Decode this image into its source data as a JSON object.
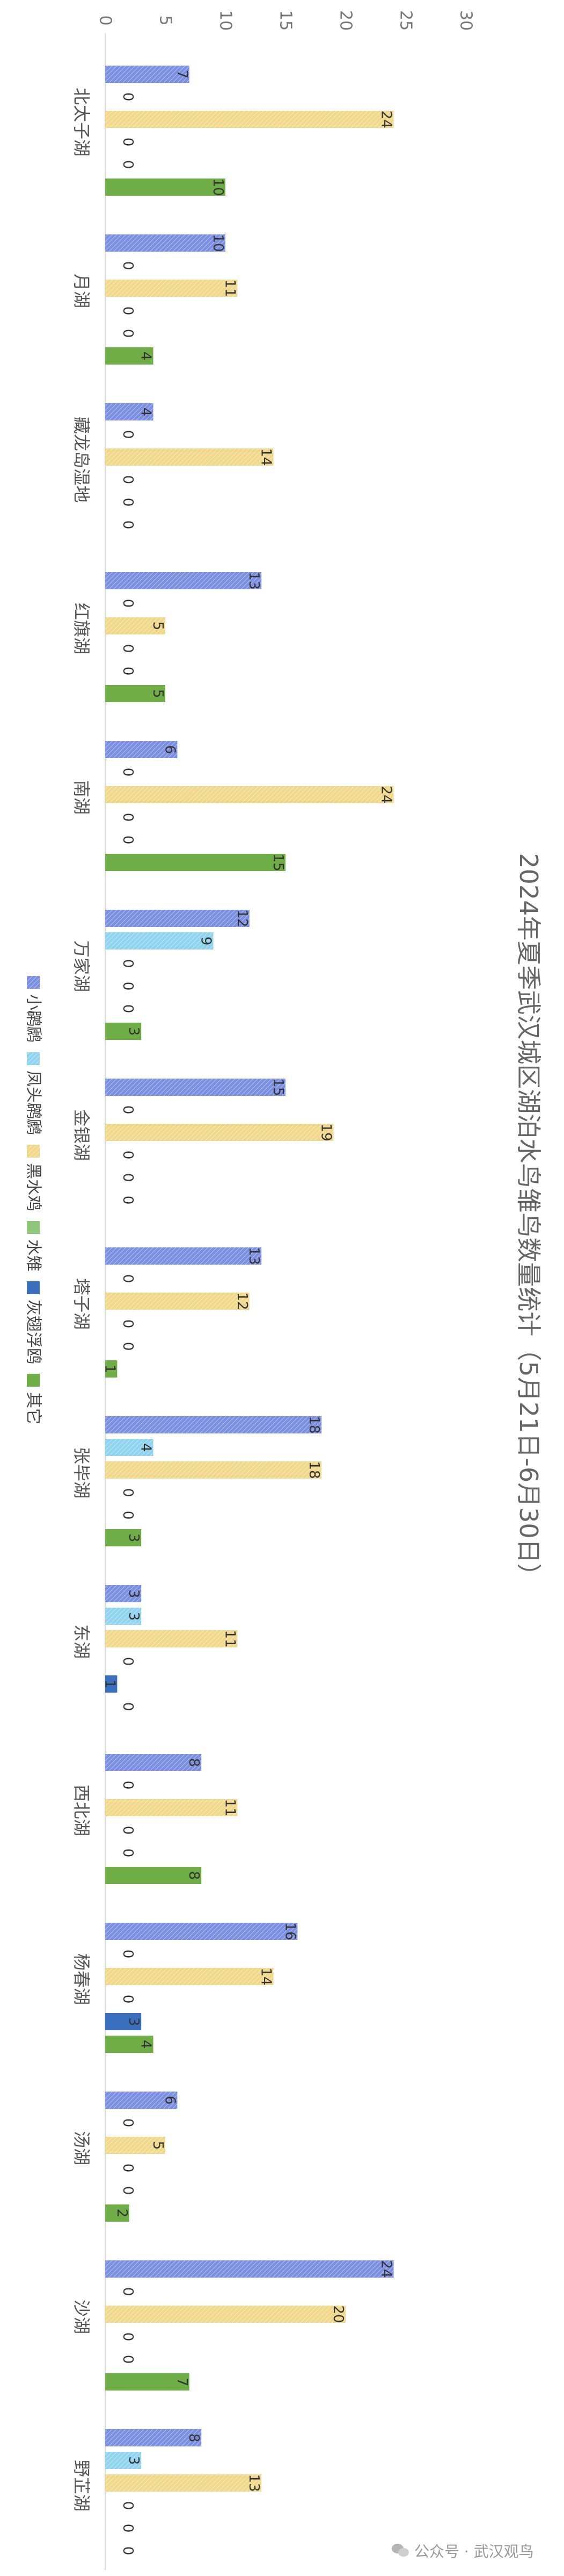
{
  "chart_data": {
    "type": "bar",
    "title": "2024年夏季武汉城区湖泊水鸟雏鸟数量统计（5月21日-6月30日）",
    "categories": [
      "北太子湖",
      "月湖",
      "藏龙岛湿地",
      "红旗湖",
      "南湖",
      "万家湖",
      "金银湖",
      "塔子湖",
      "张毕湖",
      "东湖",
      "西北湖",
      "杨春湖",
      "汤湖",
      "沙湖",
      "野芷湖"
    ],
    "series": [
      {
        "name": "小䴙䴘",
        "color": "#7b8fe0",
        "pattern": "hatch",
        "values": [
          7,
          10,
          4,
          13,
          6,
          12,
          15,
          13,
          18,
          3,
          8,
          16,
          6,
          24,
          8
        ]
      },
      {
        "name": "凤头䴙䴘",
        "color": "#8fd3ef",
        "pattern": "hatch",
        "values": [
          0,
          0,
          0,
          0,
          0,
          9,
          0,
          0,
          4,
          3,
          0,
          0,
          0,
          0,
          3
        ]
      },
      {
        "name": "黑水鸡",
        "color": "#f0d88a",
        "pattern": "hatch",
        "values": [
          24,
          11,
          14,
          5,
          24,
          0,
          19,
          12,
          18,
          11,
          11,
          14,
          5,
          20,
          13
        ]
      },
      {
        "name": "水雉",
        "color": "#8fc77a",
        "pattern": "solid",
        "values": [
          0,
          0,
          0,
          0,
          0,
          0,
          0,
          0,
          0,
          0,
          0,
          0,
          0,
          0,
          0
        ]
      },
      {
        "name": "灰翅浮鸥",
        "color": "#3a6fbd",
        "pattern": "solid",
        "values": [
          0,
          0,
          0,
          0,
          0,
          0,
          0,
          0,
          0,
          1,
          0,
          3,
          0,
          0,
          0
        ]
      },
      {
        "name": "其它",
        "color": "#6fae47",
        "pattern": "solid",
        "values": [
          10,
          4,
          0,
          5,
          15,
          3,
          0,
          1,
          3,
          0,
          8,
          4,
          2,
          7,
          0
        ]
      }
    ],
    "value_axis": {
      "min": 0,
      "max": 30,
      "ticks": [
        0,
        5,
        10,
        15,
        20,
        25,
        30
      ]
    },
    "orientation": "rotated-90-clockwise",
    "legend_position": "bottom-left",
    "grid": false
  },
  "watermark": "公众号 · 武汉观鸟"
}
